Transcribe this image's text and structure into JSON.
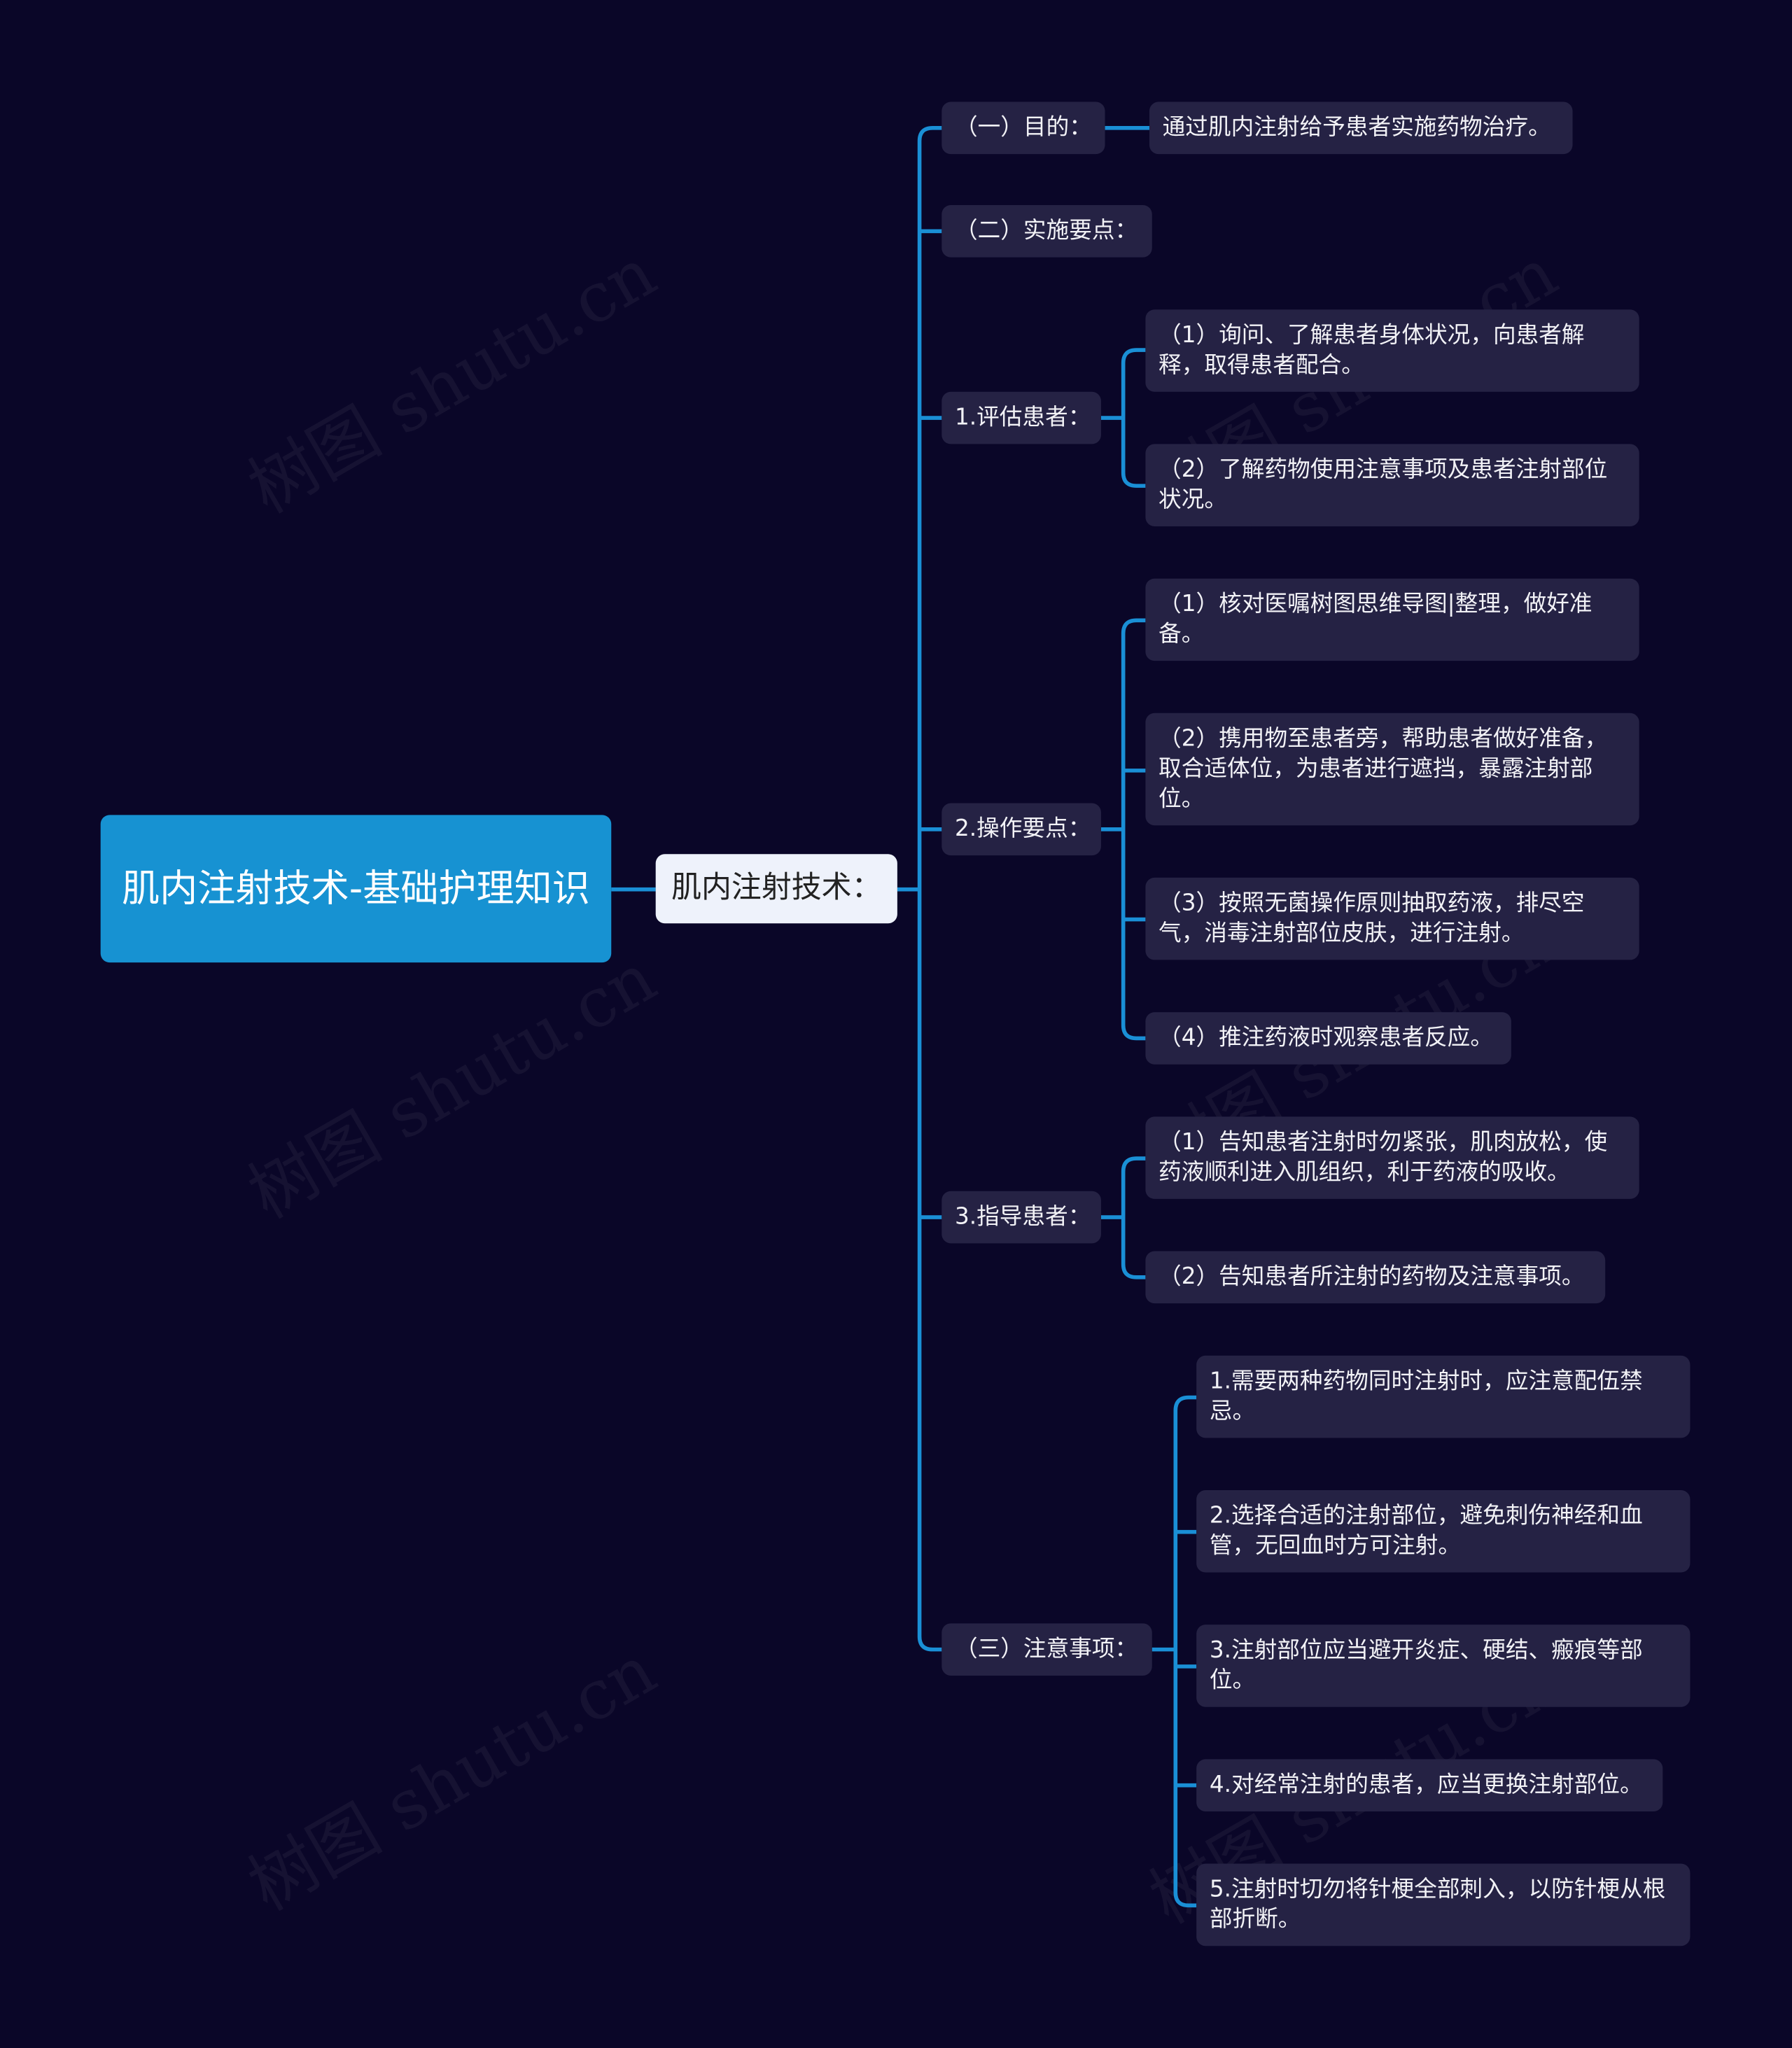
{
  "colors": {
    "background": "#0a0628",
    "root": "#1792d2",
    "line": "#1a8fd6",
    "node": "#252244",
    "level1": "#eef2fb"
  },
  "watermark": "树图 shutu.cn",
  "root": {
    "label": "肌内注射技术-基础护理知识"
  },
  "level1": {
    "label": "肌内注射技术："
  },
  "branches": [
    {
      "label": "（一）目的：",
      "children": [
        "通过肌内注射给予患者实施药物治疗。"
      ]
    },
    {
      "label": "（二）实施要点：",
      "children": []
    },
    {
      "label": "1.评估患者：",
      "children": [
        "（1）询问、了解患者身体状况，向患者解释，取得患者配合。",
        "（2）了解药物使用注意事项及患者注射部位状况。"
      ]
    },
    {
      "label": "2.操作要点：",
      "children": [
        "（1）核对医嘱树图思维导图|整理，做好准备。",
        "（2）携用物至患者旁，帮助患者做好准备，取合适体位，为患者进行遮挡，暴露注射部位。",
        "（3）按照无菌操作原则抽取药液，排尽空气，消毒注射部位皮肤，进行注射。",
        "（4）推注药液时观察患者反应。"
      ]
    },
    {
      "label": "3.指导患者：",
      "children": [
        "（1）告知患者注射时勿紧张，肌肉放松，使药液顺利进入肌组织，利于药液的吸收。",
        "（2）告知患者所注射的药物及注意事项。"
      ]
    },
    {
      "label": "（三）注意事项：",
      "children": [
        "1.需要两种药物同时注射时，应注意配伍禁忌。",
        "2.选择合适的注射部位，避免刺伤神经和血管，无回血时方可注射。",
        "3.注射部位应当避开炎症、硬结、瘢痕等部位。",
        "4.对经常注射的患者，应当更换注射部位。",
        "5.注射时切勿将针梗全部刺入，以防针梗从根部折断。"
      ]
    }
  ]
}
